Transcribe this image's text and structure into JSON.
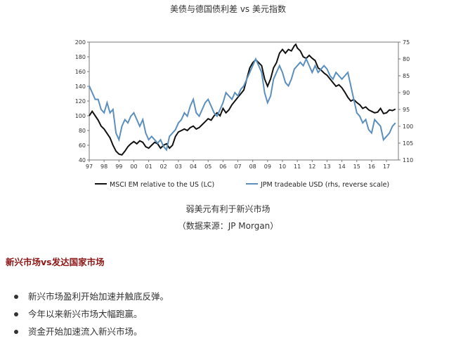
{
  "page": {
    "title": "美债与德国债利差 vs 美元指数",
    "caption": "弱美元有利于新兴市场",
    "source": "（数据来源：JP Morgan）",
    "section_heading": "新兴市场vs发达国家市场",
    "bullets": [
      "新兴市场盈利开始加速并触底反弹。",
      "今年以来新兴市场大幅跑赢。",
      "资金开始加速流入新兴市场。"
    ]
  },
  "colors": {
    "black_series": "#111111",
    "blue_series": "#5b8fbd",
    "heading": "#8c1515"
  },
  "chart_data": {
    "type": "line",
    "title": "",
    "x_ticks": [
      "97",
      "98",
      "99",
      "00",
      "01",
      "02",
      "03",
      "04",
      "05",
      "06",
      "07",
      "08",
      "09",
      "10",
      "11",
      "12",
      "13",
      "14",
      "15",
      "16",
      "17"
    ],
    "xlim": [
      1997,
      2017.8
    ],
    "ylim_left": [
      40,
      200
    ],
    "left_ticks": [
      200,
      180,
      160,
      140,
      120,
      100,
      80,
      60,
      40
    ],
    "ylim_right": [
      75,
      110
    ],
    "right_reversed": true,
    "right_ticks": [
      75,
      80,
      85,
      90,
      95,
      100,
      105,
      110
    ],
    "grid": false,
    "legend_position": "bottom",
    "series": [
      {
        "name": "MSCI EM relative to the US (LC)",
        "axis": "left",
        "color": "#111111",
        "points": [
          [
            1997.0,
            100
          ],
          [
            1997.2,
            106
          ],
          [
            1997.4,
            100
          ],
          [
            1997.6,
            94
          ],
          [
            1997.8,
            86
          ],
          [
            1998.0,
            82
          ],
          [
            1998.2,
            76
          ],
          [
            1998.4,
            70
          ],
          [
            1998.6,
            60
          ],
          [
            1998.8,
            52
          ],
          [
            1999.0,
            48
          ],
          [
            1999.2,
            47
          ],
          [
            1999.4,
            52
          ],
          [
            1999.6,
            58
          ],
          [
            1999.8,
            62
          ],
          [
            2000.0,
            65
          ],
          [
            2000.2,
            62
          ],
          [
            2000.4,
            66
          ],
          [
            2000.6,
            64
          ],
          [
            2000.8,
            58
          ],
          [
            2001.0,
            56
          ],
          [
            2001.2,
            60
          ],
          [
            2001.4,
            64
          ],
          [
            2001.6,
            62
          ],
          [
            2001.8,
            56
          ],
          [
            2002.0,
            60
          ],
          [
            2002.2,
            62
          ],
          [
            2002.4,
            56
          ],
          [
            2002.6,
            60
          ],
          [
            2002.8,
            72
          ],
          [
            2003.0,
            78
          ],
          [
            2003.2,
            80
          ],
          [
            2003.4,
            82
          ],
          [
            2003.6,
            80
          ],
          [
            2003.8,
            84
          ],
          [
            2004.0,
            86
          ],
          [
            2004.2,
            82
          ],
          [
            2004.4,
            84
          ],
          [
            2004.6,
            88
          ],
          [
            2004.8,
            92
          ],
          [
            2005.0,
            96
          ],
          [
            2005.2,
            94
          ],
          [
            2005.4,
            100
          ],
          [
            2005.6,
            104
          ],
          [
            2005.8,
            100
          ],
          [
            2006.0,
            110
          ],
          [
            2006.2,
            104
          ],
          [
            2006.4,
            108
          ],
          [
            2006.6,
            115
          ],
          [
            2006.8,
            120
          ],
          [
            2007.0,
            125
          ],
          [
            2007.2,
            130
          ],
          [
            2007.4,
            135
          ],
          [
            2007.6,
            150
          ],
          [
            2007.8,
            165
          ],
          [
            2008.0,
            172
          ],
          [
            2008.2,
            176
          ],
          [
            2008.4,
            172
          ],
          [
            2008.6,
            168
          ],
          [
            2008.8,
            150
          ],
          [
            2009.0,
            140
          ],
          [
            2009.2,
            150
          ],
          [
            2009.4,
            165
          ],
          [
            2009.6,
            172
          ],
          [
            2009.8,
            185
          ],
          [
            2010.0,
            190
          ],
          [
            2010.2,
            185
          ],
          [
            2010.4,
            190
          ],
          [
            2010.6,
            188
          ],
          [
            2010.8,
            195
          ],
          [
            2010.9,
            197
          ],
          [
            2011.0,
            192
          ],
          [
            2011.2,
            188
          ],
          [
            2011.4,
            180
          ],
          [
            2011.6,
            178
          ],
          [
            2011.8,
            182
          ],
          [
            2012.0,
            178
          ],
          [
            2012.2,
            175
          ],
          [
            2012.4,
            165
          ],
          [
            2012.6,
            162
          ],
          [
            2012.8,
            158
          ],
          [
            2013.0,
            155
          ],
          [
            2013.2,
            150
          ],
          [
            2013.4,
            145
          ],
          [
            2013.6,
            140
          ],
          [
            2013.8,
            142
          ],
          [
            2014.0,
            138
          ],
          [
            2014.2,
            132
          ],
          [
            2014.4,
            125
          ],
          [
            2014.6,
            120
          ],
          [
            2014.8,
            122
          ],
          [
            2015.0,
            118
          ],
          [
            2015.2,
            115
          ],
          [
            2015.4,
            110
          ],
          [
            2015.6,
            112
          ],
          [
            2015.8,
            108
          ],
          [
            2016.0,
            106
          ],
          [
            2016.2,
            104
          ],
          [
            2016.4,
            105
          ],
          [
            2016.6,
            110
          ],
          [
            2016.8,
            103
          ],
          [
            2017.0,
            104
          ],
          [
            2017.2,
            108
          ],
          [
            2017.4,
            107
          ],
          [
            2017.6,
            109
          ]
        ]
      },
      {
        "name": "JPM tradeable USD (rhs, reverse scale)",
        "axis": "right",
        "color": "#5b8fbd",
        "points": [
          [
            1997.0,
            88
          ],
          [
            1997.2,
            90
          ],
          [
            1997.4,
            92
          ],
          [
            1997.6,
            92
          ],
          [
            1997.8,
            95
          ],
          [
            1998.0,
            96
          ],
          [
            1998.2,
            93
          ],
          [
            1998.4,
            96
          ],
          [
            1998.6,
            95
          ],
          [
            1998.8,
            102
          ],
          [
            1999.0,
            104
          ],
          [
            1999.2,
            100
          ],
          [
            1999.4,
            98
          ],
          [
            1999.6,
            99
          ],
          [
            1999.8,
            97
          ],
          [
            2000.0,
            96
          ],
          [
            2000.2,
            98
          ],
          [
            2000.4,
            100
          ],
          [
            2000.6,
            98
          ],
          [
            2000.8,
            102
          ],
          [
            2001.0,
            104
          ],
          [
            2001.2,
            103
          ],
          [
            2001.4,
            104
          ],
          [
            2001.6,
            105
          ],
          [
            2001.8,
            104
          ],
          [
            2002.0,
            106
          ],
          [
            2002.2,
            107
          ],
          [
            2002.4,
            103
          ],
          [
            2002.6,
            102
          ],
          [
            2002.8,
            101
          ],
          [
            2003.0,
            99
          ],
          [
            2003.2,
            98
          ],
          [
            2003.4,
            96
          ],
          [
            2003.6,
            97
          ],
          [
            2003.8,
            94
          ],
          [
            2004.0,
            92
          ],
          [
            2004.2,
            96
          ],
          [
            2004.4,
            97
          ],
          [
            2004.6,
            95
          ],
          [
            2004.8,
            93
          ],
          [
            2005.0,
            92
          ],
          [
            2005.2,
            94
          ],
          [
            2005.4,
            96
          ],
          [
            2005.6,
            97
          ],
          [
            2005.8,
            95
          ],
          [
            2006.0,
            93
          ],
          [
            2006.2,
            90
          ],
          [
            2006.4,
            91
          ],
          [
            2006.6,
            92
          ],
          [
            2006.8,
            90
          ],
          [
            2007.0,
            91
          ],
          [
            2007.2,
            89
          ],
          [
            2007.4,
            88
          ],
          [
            2007.6,
            86
          ],
          [
            2007.8,
            84
          ],
          [
            2008.0,
            82
          ],
          [
            2008.2,
            80
          ],
          [
            2008.4,
            82
          ],
          [
            2008.6,
            84
          ],
          [
            2008.8,
            90
          ],
          [
            2009.0,
            93
          ],
          [
            2009.2,
            91
          ],
          [
            2009.4,
            86
          ],
          [
            2009.6,
            84
          ],
          [
            2009.8,
            82
          ],
          [
            2010.0,
            84
          ],
          [
            2010.2,
            87
          ],
          [
            2010.4,
            88
          ],
          [
            2010.6,
            86
          ],
          [
            2010.8,
            83
          ],
          [
            2011.0,
            82
          ],
          [
            2011.2,
            81
          ],
          [
            2011.4,
            82
          ],
          [
            2011.6,
            80
          ],
          [
            2011.8,
            82
          ],
          [
            2012.0,
            84
          ],
          [
            2012.2,
            82
          ],
          [
            2012.4,
            84
          ],
          [
            2012.6,
            83
          ],
          [
            2012.8,
            82
          ],
          [
            2013.0,
            83
          ],
          [
            2013.2,
            85
          ],
          [
            2013.4,
            86
          ],
          [
            2013.6,
            84
          ],
          [
            2013.8,
            85
          ],
          [
            2014.0,
            86
          ],
          [
            2014.2,
            85
          ],
          [
            2014.4,
            84
          ],
          [
            2014.6,
            88
          ],
          [
            2014.8,
            92
          ],
          [
            2015.0,
            96
          ],
          [
            2015.2,
            97
          ],
          [
            2015.4,
            99
          ],
          [
            2015.6,
            98
          ],
          [
            2015.8,
            101
          ],
          [
            2016.0,
            102
          ],
          [
            2016.2,
            98
          ],
          [
            2016.4,
            99
          ],
          [
            2016.6,
            100
          ],
          [
            2016.8,
            104
          ],
          [
            2017.0,
            103
          ],
          [
            2017.2,
            102
          ],
          [
            2017.4,
            100
          ],
          [
            2017.6,
            99
          ]
        ]
      }
    ]
  }
}
